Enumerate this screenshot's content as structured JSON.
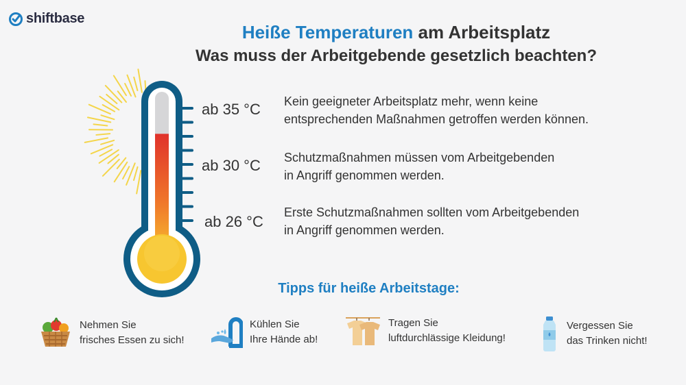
{
  "brand": {
    "name": "shiftbase",
    "logo_icon": "check-circle-icon",
    "color": "#1f7fc2"
  },
  "heading": {
    "accent": "Heiße Temperaturen",
    "rest": " am Arbeitsplatz",
    "subtitle": "Was muss der Arbeitgebende gesetzlich beachten?"
  },
  "thermometer": {
    "frame_color": "#0f5d86",
    "fill_top_color": "#e0322b",
    "fill_bottom_color": "#f7c630",
    "sun_color": "#f4d54a",
    "fill_level": 0.74
  },
  "levels": [
    {
      "temp": "ab 35 °C",
      "text": "Kein geeigneter Arbeitsplatz mehr, wenn keine\nentsprechenden Maßnahmen getroffen werden können."
    },
    {
      "temp": "ab 30 °C",
      "text": "Schutzmaßnahmen müssen vom Arbeitgebenden\nin Angriff genommen werden."
    },
    {
      "temp": "ab 26 °C",
      "text": "Erste Schutzmaßnahmen sollten vom Arbeitgebenden\nin Angriff genommen werden."
    }
  ],
  "tips": {
    "title": "Tipps für heiße Arbeitstage:",
    "items": [
      {
        "icon": "fruit-basket-icon",
        "text": "Nehmen Sie\nfrisches Essen zu sich!"
      },
      {
        "icon": "hand-washing-icon",
        "text": "Kühlen Sie\nIhre Hände ab!"
      },
      {
        "icon": "clothes-rack-icon",
        "text": "Tragen Sie\nluftdurchlässige Kleidung!"
      },
      {
        "icon": "water-bottle-icon",
        "text": "Vergessen Sie\ndas Trinken nicht!"
      }
    ]
  }
}
